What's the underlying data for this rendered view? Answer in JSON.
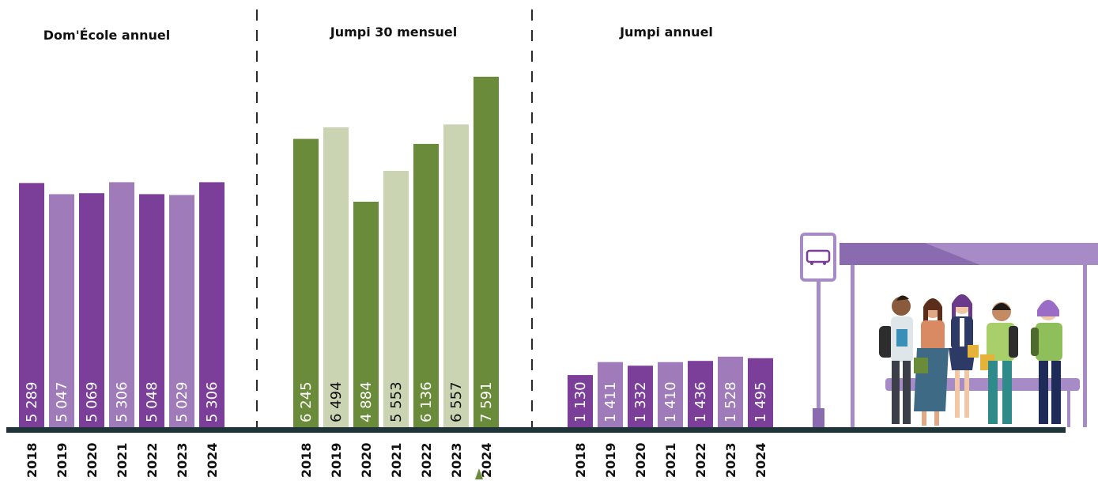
{
  "chart_data": [
    {
      "type": "bar",
      "title": "Dom'École annuel",
      "categories": [
        "2018",
        "2019",
        "2020",
        "2021",
        "2022",
        "2023",
        "2024"
      ],
      "values": [
        5289,
        5047,
        5069,
        5306,
        5048,
        5029,
        5306
      ],
      "value_labels": [
        "5 289",
        "5 047",
        "5 069",
        "5 306",
        "5 048",
        "5 029",
        "5 306"
      ],
      "colors": [
        "#7b3f9a",
        "#a07bba",
        "#7b3f9a",
        "#a07bba",
        "#7b3f9a",
        "#a07bba",
        "#7b3f9a"
      ],
      "label_colors": [
        "#ffffff",
        "#ffffff",
        "#ffffff",
        "#ffffff",
        "#ffffff",
        "#ffffff",
        "#ffffff"
      ]
    },
    {
      "type": "bar",
      "title": "Jumpi 30 mensuel",
      "categories": [
        "2018",
        "2019",
        "2020",
        "2021",
        "2022",
        "2023",
        "2024"
      ],
      "values": [
        6245,
        6494,
        4884,
        5553,
        6136,
        6557,
        7591
      ],
      "value_labels": [
        "6 245",
        "6 494",
        "4 884",
        "5 553",
        "6 136",
        "6 557",
        "7 591"
      ],
      "colors": [
        "#6a8c3a",
        "#cad3b2",
        "#6a8c3a",
        "#cad3b2",
        "#6a8c3a",
        "#cad3b2",
        "#6a8c3a"
      ],
      "label_colors": [
        "#ffffff",
        "#111111",
        "#ffffff",
        "#111111",
        "#ffffff",
        "#111111",
        "#ffffff"
      ]
    },
    {
      "type": "bar",
      "title": "Jumpi annuel",
      "categories": [
        "2018",
        "2019",
        "2020",
        "2021",
        "2022",
        "2023",
        "2024"
      ],
      "values": [
        1130,
        1411,
        1332,
        1410,
        1436,
        1528,
        1495
      ],
      "value_labels": [
        "1 130",
        "1 411",
        "1 332",
        "1 410",
        "1 436",
        "1 528",
        "1 495"
      ],
      "colors": [
        "#7b3f9a",
        "#a07bba",
        "#7b3f9a",
        "#a07bba",
        "#7b3f9a",
        "#a07bba",
        "#7b3f9a"
      ],
      "label_colors": [
        "#ffffff",
        "#ffffff",
        "#ffffff",
        "#ffffff",
        "#ffffff",
        "#ffffff",
        "#ffffff"
      ]
    }
  ],
  "colors": {
    "baseline": "#1e3438",
    "divider": "#2a2a2a",
    "shelter": "#a68bc6",
    "shelter_dark": "#8a6bb0",
    "accent_green": "#6a8c3a"
  },
  "illustration": {
    "shelter_icon": "bus-stop-icon",
    "people_icon": "students-waiting-icon",
    "arrow_icon": "up-arrow-icon"
  }
}
